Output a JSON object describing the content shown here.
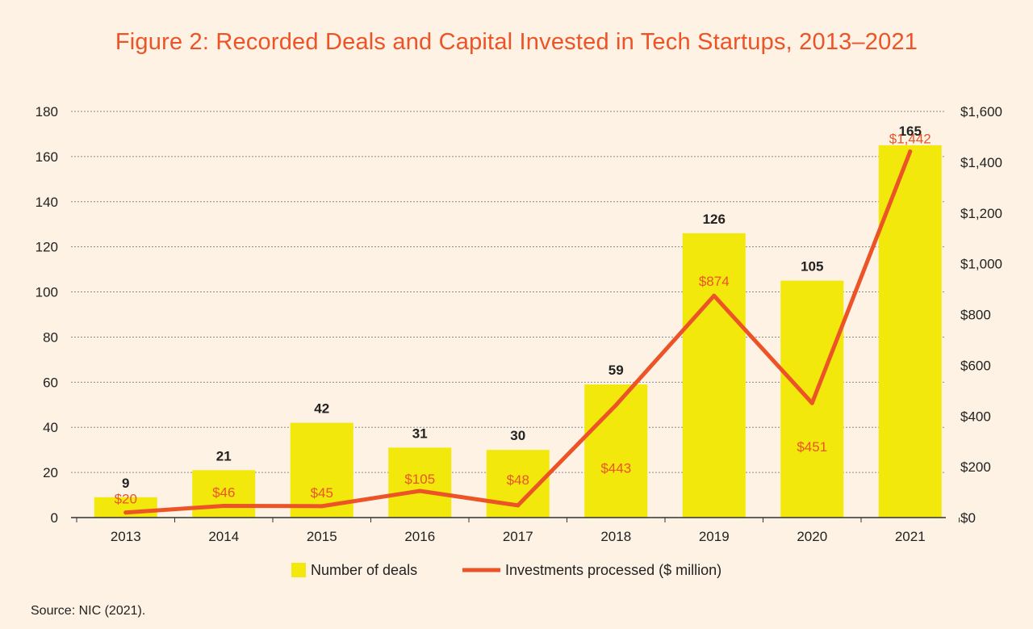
{
  "chart_data": {
    "type": "bar",
    "title": "Figure 2: Recorded Deals and Capital Invested in Tech Startups, 2013–2021",
    "categories": [
      "2013",
      "2014",
      "2015",
      "2016",
      "2017",
      "2018",
      "2019",
      "2020",
      "2021"
    ],
    "series": [
      {
        "name": "Number of deals",
        "type": "bar",
        "axis": "left",
        "color": "#f2e80c",
        "values": [
          9,
          21,
          42,
          31,
          30,
          59,
          126,
          105,
          165
        ],
        "labels": [
          "9",
          "21",
          "42",
          "31",
          "30",
          "59",
          "126",
          "105",
          "165"
        ]
      },
      {
        "name": "Investments processed ($ million)",
        "type": "line",
        "axis": "right",
        "color": "#ec5428",
        "values": [
          20,
          46,
          45,
          105,
          48,
          443,
          874,
          451,
          1442
        ],
        "labels": [
          "$20",
          "$46",
          "$45",
          "$105",
          "$48",
          "$443",
          "$874",
          "$451",
          "$1,442"
        ]
      }
    ],
    "y_left": {
      "ylim": [
        0,
        180
      ],
      "ticks": [
        0,
        20,
        40,
        60,
        80,
        100,
        120,
        140,
        160,
        180
      ],
      "tick_labels": [
        "0",
        "20",
        "40",
        "60",
        "80",
        "100",
        "120",
        "140",
        "160",
        "180"
      ]
    },
    "y_right": {
      "ylim": [
        0,
        1600
      ],
      "ticks": [
        0,
        200,
        400,
        600,
        800,
        1000,
        1200,
        1400,
        1600
      ],
      "tick_labels": [
        "$0",
        "$200",
        "$400",
        "$600",
        "$800",
        "$1,000",
        "$1,200",
        "$1,400",
        "$1,600"
      ]
    },
    "grid": true,
    "legend": "bottom-center",
    "source": "Source: NIC (2021)."
  }
}
